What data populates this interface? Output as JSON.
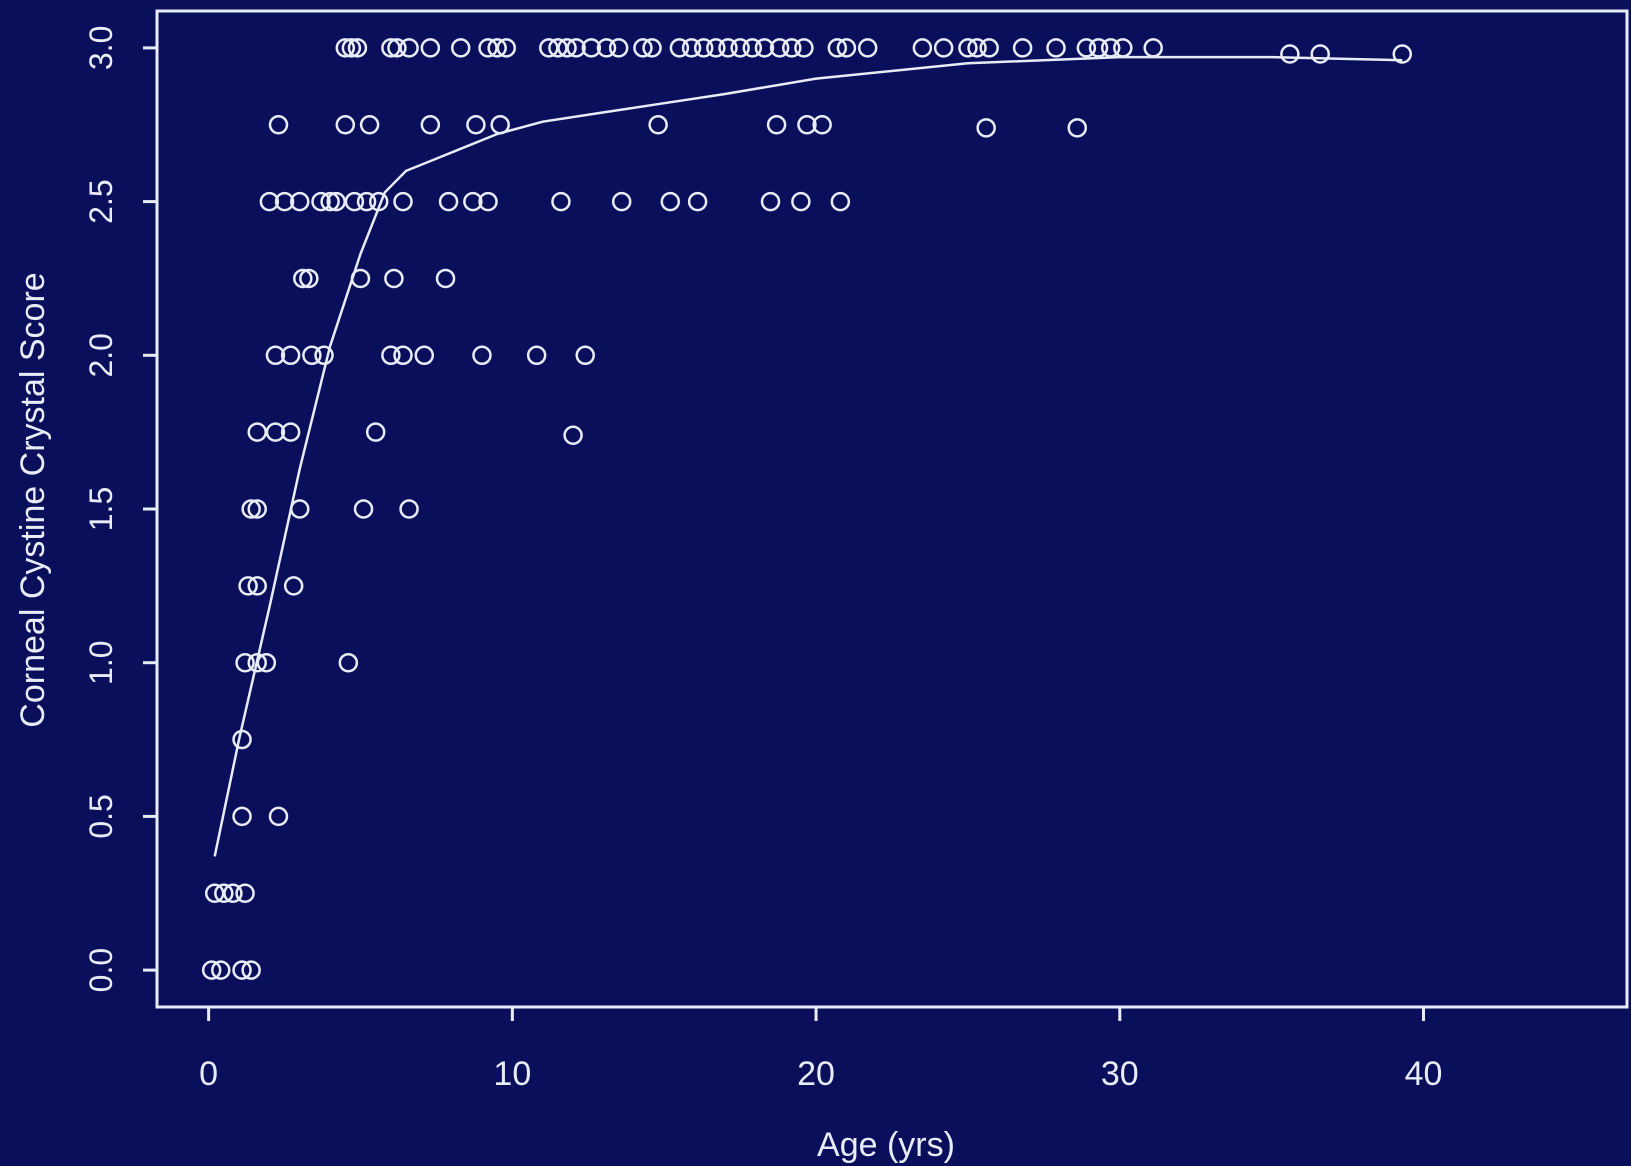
{
  "chart_data": {
    "type": "scatter",
    "title": "",
    "xlabel": "Age (yrs)",
    "ylabel": "Corneal Cystine Crystal Score",
    "xlim": [
      -1.7,
      46.7
    ],
    "ylim": [
      -0.12,
      3.12
    ],
    "x_ticks": [
      0,
      10,
      20,
      30,
      40
    ],
    "y_ticks": [
      0.0,
      0.5,
      1.0,
      1.5,
      2.0,
      2.5,
      3.0
    ],
    "y_tick_labels": [
      "0.0",
      "0.5",
      "1.0",
      "1.5",
      "2.0",
      "2.5",
      "3.0"
    ],
    "grid": false,
    "legend": "none",
    "colors": {
      "background": "#0a0f5c",
      "foreground": "#e8ecf6"
    },
    "series": [
      {
        "type": "scatter",
        "points": [
          [
            4.5,
            3.0
          ],
          [
            4.7,
            3.0
          ],
          [
            4.9,
            3.0
          ],
          [
            6.0,
            3.0
          ],
          [
            6.2,
            3.0
          ],
          [
            6.6,
            3.0
          ],
          [
            7.3,
            3.0
          ],
          [
            8.3,
            3.0
          ],
          [
            9.2,
            3.0
          ],
          [
            9.5,
            3.0
          ],
          [
            9.8,
            3.0
          ],
          [
            11.2,
            3.0
          ],
          [
            11.5,
            3.0
          ],
          [
            11.8,
            3.0
          ],
          [
            12.1,
            3.0
          ],
          [
            12.6,
            3.0
          ],
          [
            13.1,
            3.0
          ],
          [
            13.5,
            3.0
          ],
          [
            14.3,
            3.0
          ],
          [
            14.6,
            3.0
          ],
          [
            15.5,
            3.0
          ],
          [
            15.9,
            3.0
          ],
          [
            16.3,
            3.0
          ],
          [
            16.7,
            3.0
          ],
          [
            17.1,
            3.0
          ],
          [
            17.5,
            3.0
          ],
          [
            17.9,
            3.0
          ],
          [
            18.3,
            3.0
          ],
          [
            18.8,
            3.0
          ],
          [
            19.2,
            3.0
          ],
          [
            19.6,
            3.0
          ],
          [
            20.7,
            3.0
          ],
          [
            21.0,
            3.0
          ],
          [
            21.7,
            3.0
          ],
          [
            23.5,
            3.0
          ],
          [
            24.2,
            3.0
          ],
          [
            25.0,
            3.0
          ],
          [
            25.3,
            3.0
          ],
          [
            25.7,
            3.0
          ],
          [
            26.8,
            3.0
          ],
          [
            27.9,
            3.0
          ],
          [
            28.9,
            3.0
          ],
          [
            29.3,
            3.0
          ],
          [
            29.7,
            3.0
          ],
          [
            30.1,
            3.0
          ],
          [
            31.1,
            3.0
          ],
          [
            35.6,
            2.98
          ],
          [
            36.6,
            2.98
          ],
          [
            39.3,
            2.98
          ],
          [
            2.3,
            2.75
          ],
          [
            4.5,
            2.75
          ],
          [
            5.3,
            2.75
          ],
          [
            7.3,
            2.75
          ],
          [
            8.8,
            2.75
          ],
          [
            9.6,
            2.75
          ],
          [
            14.8,
            2.75
          ],
          [
            18.7,
            2.75
          ],
          [
            19.7,
            2.75
          ],
          [
            20.2,
            2.75
          ],
          [
            25.6,
            2.74
          ],
          [
            28.6,
            2.74
          ],
          [
            2.0,
            2.5
          ],
          [
            2.5,
            2.5
          ],
          [
            3.0,
            2.5
          ],
          [
            3.7,
            2.5
          ],
          [
            4.0,
            2.5
          ],
          [
            4.2,
            2.5
          ],
          [
            4.8,
            2.5
          ],
          [
            5.2,
            2.5
          ],
          [
            5.6,
            2.5
          ],
          [
            6.4,
            2.5
          ],
          [
            7.9,
            2.5
          ],
          [
            8.7,
            2.5
          ],
          [
            9.2,
            2.5
          ],
          [
            11.6,
            2.5
          ],
          [
            13.6,
            2.5
          ],
          [
            15.2,
            2.5
          ],
          [
            16.1,
            2.5
          ],
          [
            18.5,
            2.5
          ],
          [
            19.5,
            2.5
          ],
          [
            20.8,
            2.5
          ],
          [
            3.1,
            2.25
          ],
          [
            3.3,
            2.25
          ],
          [
            5.0,
            2.25
          ],
          [
            6.1,
            2.25
          ],
          [
            7.8,
            2.25
          ],
          [
            2.2,
            2.0
          ],
          [
            2.7,
            2.0
          ],
          [
            3.4,
            2.0
          ],
          [
            3.8,
            2.0
          ],
          [
            6.0,
            2.0
          ],
          [
            6.4,
            2.0
          ],
          [
            7.1,
            2.0
          ],
          [
            9.0,
            2.0
          ],
          [
            10.8,
            2.0
          ],
          [
            12.4,
            2.0
          ],
          [
            1.6,
            1.75
          ],
          [
            2.2,
            1.75
          ],
          [
            2.7,
            1.75
          ],
          [
            5.5,
            1.75
          ],
          [
            12.0,
            1.74
          ],
          [
            1.4,
            1.5
          ],
          [
            1.6,
            1.5
          ],
          [
            3.0,
            1.5
          ],
          [
            5.1,
            1.5
          ],
          [
            6.6,
            1.5
          ],
          [
            1.3,
            1.25
          ],
          [
            1.6,
            1.25
          ],
          [
            2.8,
            1.25
          ],
          [
            1.2,
            1.0
          ],
          [
            1.6,
            1.0
          ],
          [
            1.9,
            1.0
          ],
          [
            4.6,
            1.0
          ],
          [
            1.1,
            0.75
          ],
          [
            1.1,
            0.5
          ],
          [
            2.3,
            0.5
          ],
          [
            0.2,
            0.25
          ],
          [
            0.5,
            0.25
          ],
          [
            0.8,
            0.25
          ],
          [
            1.2,
            0.25
          ],
          [
            0.1,
            0.0
          ],
          [
            0.4,
            0.0
          ],
          [
            1.1,
            0.0
          ],
          [
            1.4,
            0.0
          ]
        ]
      },
      {
        "type": "line",
        "x": [
          0.2,
          1.0,
          2.0,
          3.0,
          4.0,
          5.0,
          5.8,
          6.5,
          7.5,
          8.5,
          9.5,
          11.0,
          13.0,
          15.0,
          17.0,
          20.0,
          25.0,
          30.0,
          35.0,
          39.3
        ],
        "y": [
          0.37,
          0.75,
          1.18,
          1.63,
          2.03,
          2.33,
          2.53,
          2.6,
          2.64,
          2.68,
          2.72,
          2.76,
          2.79,
          2.82,
          2.85,
          2.9,
          2.95,
          2.97,
          2.97,
          2.96
        ]
      }
    ]
  }
}
